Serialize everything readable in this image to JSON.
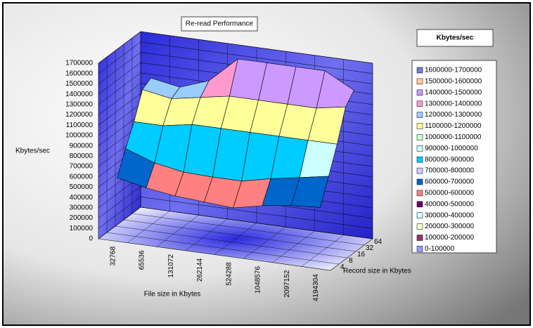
{
  "chart_data": {
    "type": "surface",
    "title": "Re-read Performance",
    "zlabel": "Kbytes/sec",
    "xlabel": "File size in Kbytes",
    "ylabel": "Record size in Kbytes",
    "categories": [
      "32768",
      "65536",
      "131072",
      "262144",
      "524288",
      "1048576",
      "2097152",
      "4194304"
    ],
    "series": [
      {
        "name": "4",
        "values": [
          580000,
          520000,
          480000,
          460000,
          440000,
          500000,
          540000,
          560000
        ]
      },
      {
        "name": "8",
        "values": [
          800000,
          700000,
          650000,
          640000,
          640000,
          700000,
          750000,
          800000
        ]
      },
      {
        "name": "16",
        "values": [
          1000000,
          1000000,
          1050000,
          1050000,
          1050000,
          1050000,
          1050000,
          1050000
        ]
      },
      {
        "name": "32",
        "values": [
          1250000,
          1200000,
          1250000,
          1300000,
          1300000,
          1300000,
          1300000,
          1350000
        ]
      },
      {
        "name": "64",
        "values": [
          1300000,
          1250000,
          1350000,
          1600000,
          1600000,
          1600000,
          1600000,
          1450000
        ]
      }
    ],
    "zlim": [
      0,
      1700000
    ],
    "zticks": [
      0,
      100000,
      200000,
      300000,
      400000,
      500000,
      600000,
      700000,
      800000,
      900000,
      1000000,
      1100000,
      1200000,
      1300000,
      1400000,
      1500000,
      1600000,
      1700000
    ],
    "legend": {
      "title": "Kbytes/sec",
      "items": [
        {
          "name": "1600000-1700000",
          "color": "#6f7fd7"
        },
        {
          "name": "1500000-1600000",
          "color": "#ffcc99"
        },
        {
          "name": "1400000-1500000",
          "color": "#cc99ff"
        },
        {
          "name": "1300000-1400000",
          "color": "#ff99cc"
        },
        {
          "name": "1200000-1300000",
          "color": "#99ccff"
        },
        {
          "name": "1100000-1200000",
          "color": "#ffff99"
        },
        {
          "name": "1000000-1100000",
          "color": "#ccffcc"
        },
        {
          "name": "900000-1000000",
          "color": "#ccffff"
        },
        {
          "name": "800000-900000",
          "color": "#00ccff"
        },
        {
          "name": "700000-800000",
          "color": "#ccccff"
        },
        {
          "name": "600000-700000",
          "color": "#0066cc"
        },
        {
          "name": "500000-600000",
          "color": "#ff8080"
        },
        {
          "name": "400000-500000",
          "color": "#660066"
        },
        {
          "name": "300000-400000",
          "color": "#ccffff"
        },
        {
          "name": "200000-300000",
          "color": "#ffffcc"
        },
        {
          "name": "100000-200000",
          "color": "#993366"
        },
        {
          "name": "0-100000",
          "color": "#9999ff"
        }
      ]
    }
  }
}
